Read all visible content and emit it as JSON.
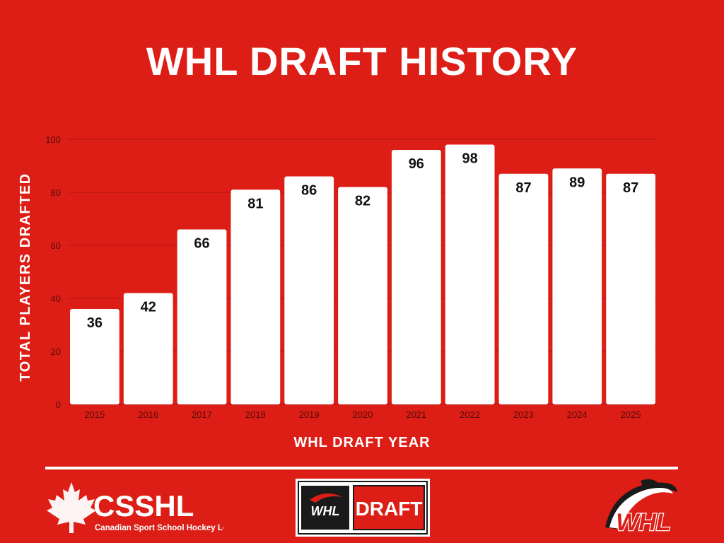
{
  "chart_data": {
    "type": "bar",
    "title": "WHL DRAFT HISTORY",
    "xlabel": "WHL DRAFT YEAR",
    "ylabel": "TOTAL PLAYERS DRAFTED",
    "categories": [
      "2015",
      "2016",
      "2017",
      "2018",
      "2019",
      "2020",
      "2021",
      "2022",
      "2023",
      "2024",
      "2025"
    ],
    "values": [
      36,
      42,
      66,
      81,
      86,
      82,
      96,
      98,
      87,
      89,
      87
    ],
    "ylim": [
      0,
      100
    ],
    "yticks": [
      0,
      20,
      40,
      60,
      80,
      100
    ],
    "grid": true,
    "legend": "none"
  },
  "colors": {
    "background": "#DC1E16",
    "bar": "#FFFFFF",
    "gridline": "#B5150F",
    "axis_text": "#5A0B08"
  },
  "logos": {
    "csshl": {
      "name": "CSSHL",
      "tagline": "Canadian Sport School Hockey League",
      "icon": "maple-leaf-icon"
    },
    "draft": {
      "mark": "WHL",
      "label": "DRAFT"
    },
    "whl": {
      "mark": "WHL",
      "icon": "whl-flame-icon"
    }
  }
}
